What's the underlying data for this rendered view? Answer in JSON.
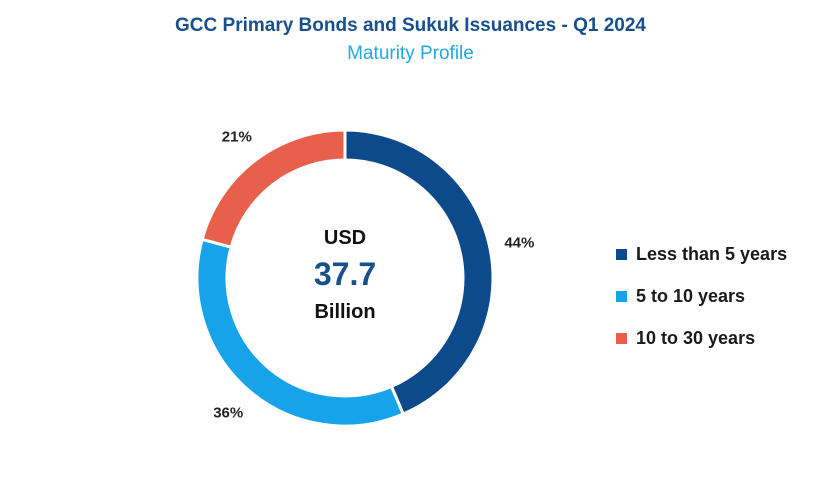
{
  "chart_data": {
    "type": "pie",
    "title": "GCC Primary Bonds and Sukuk Issuances - Q1 2024",
    "subtitle": "Maturity Profile",
    "center": {
      "top": "USD",
      "value": "37.7",
      "bottom": "Billion"
    },
    "slices": [
      {
        "label": "Less than 5 years",
        "value": 44,
        "value_label": "44%",
        "color": "#0d4a8b"
      },
      {
        "label": "5 to 10 years",
        "value": 36,
        "value_label": "36%",
        "color": "#17a3ea"
      },
      {
        "label": "10 to 30 years",
        "value": 21,
        "value_label": "21%",
        "color": "#e8604b"
      }
    ],
    "legend_position": "right",
    "donut": true
  }
}
